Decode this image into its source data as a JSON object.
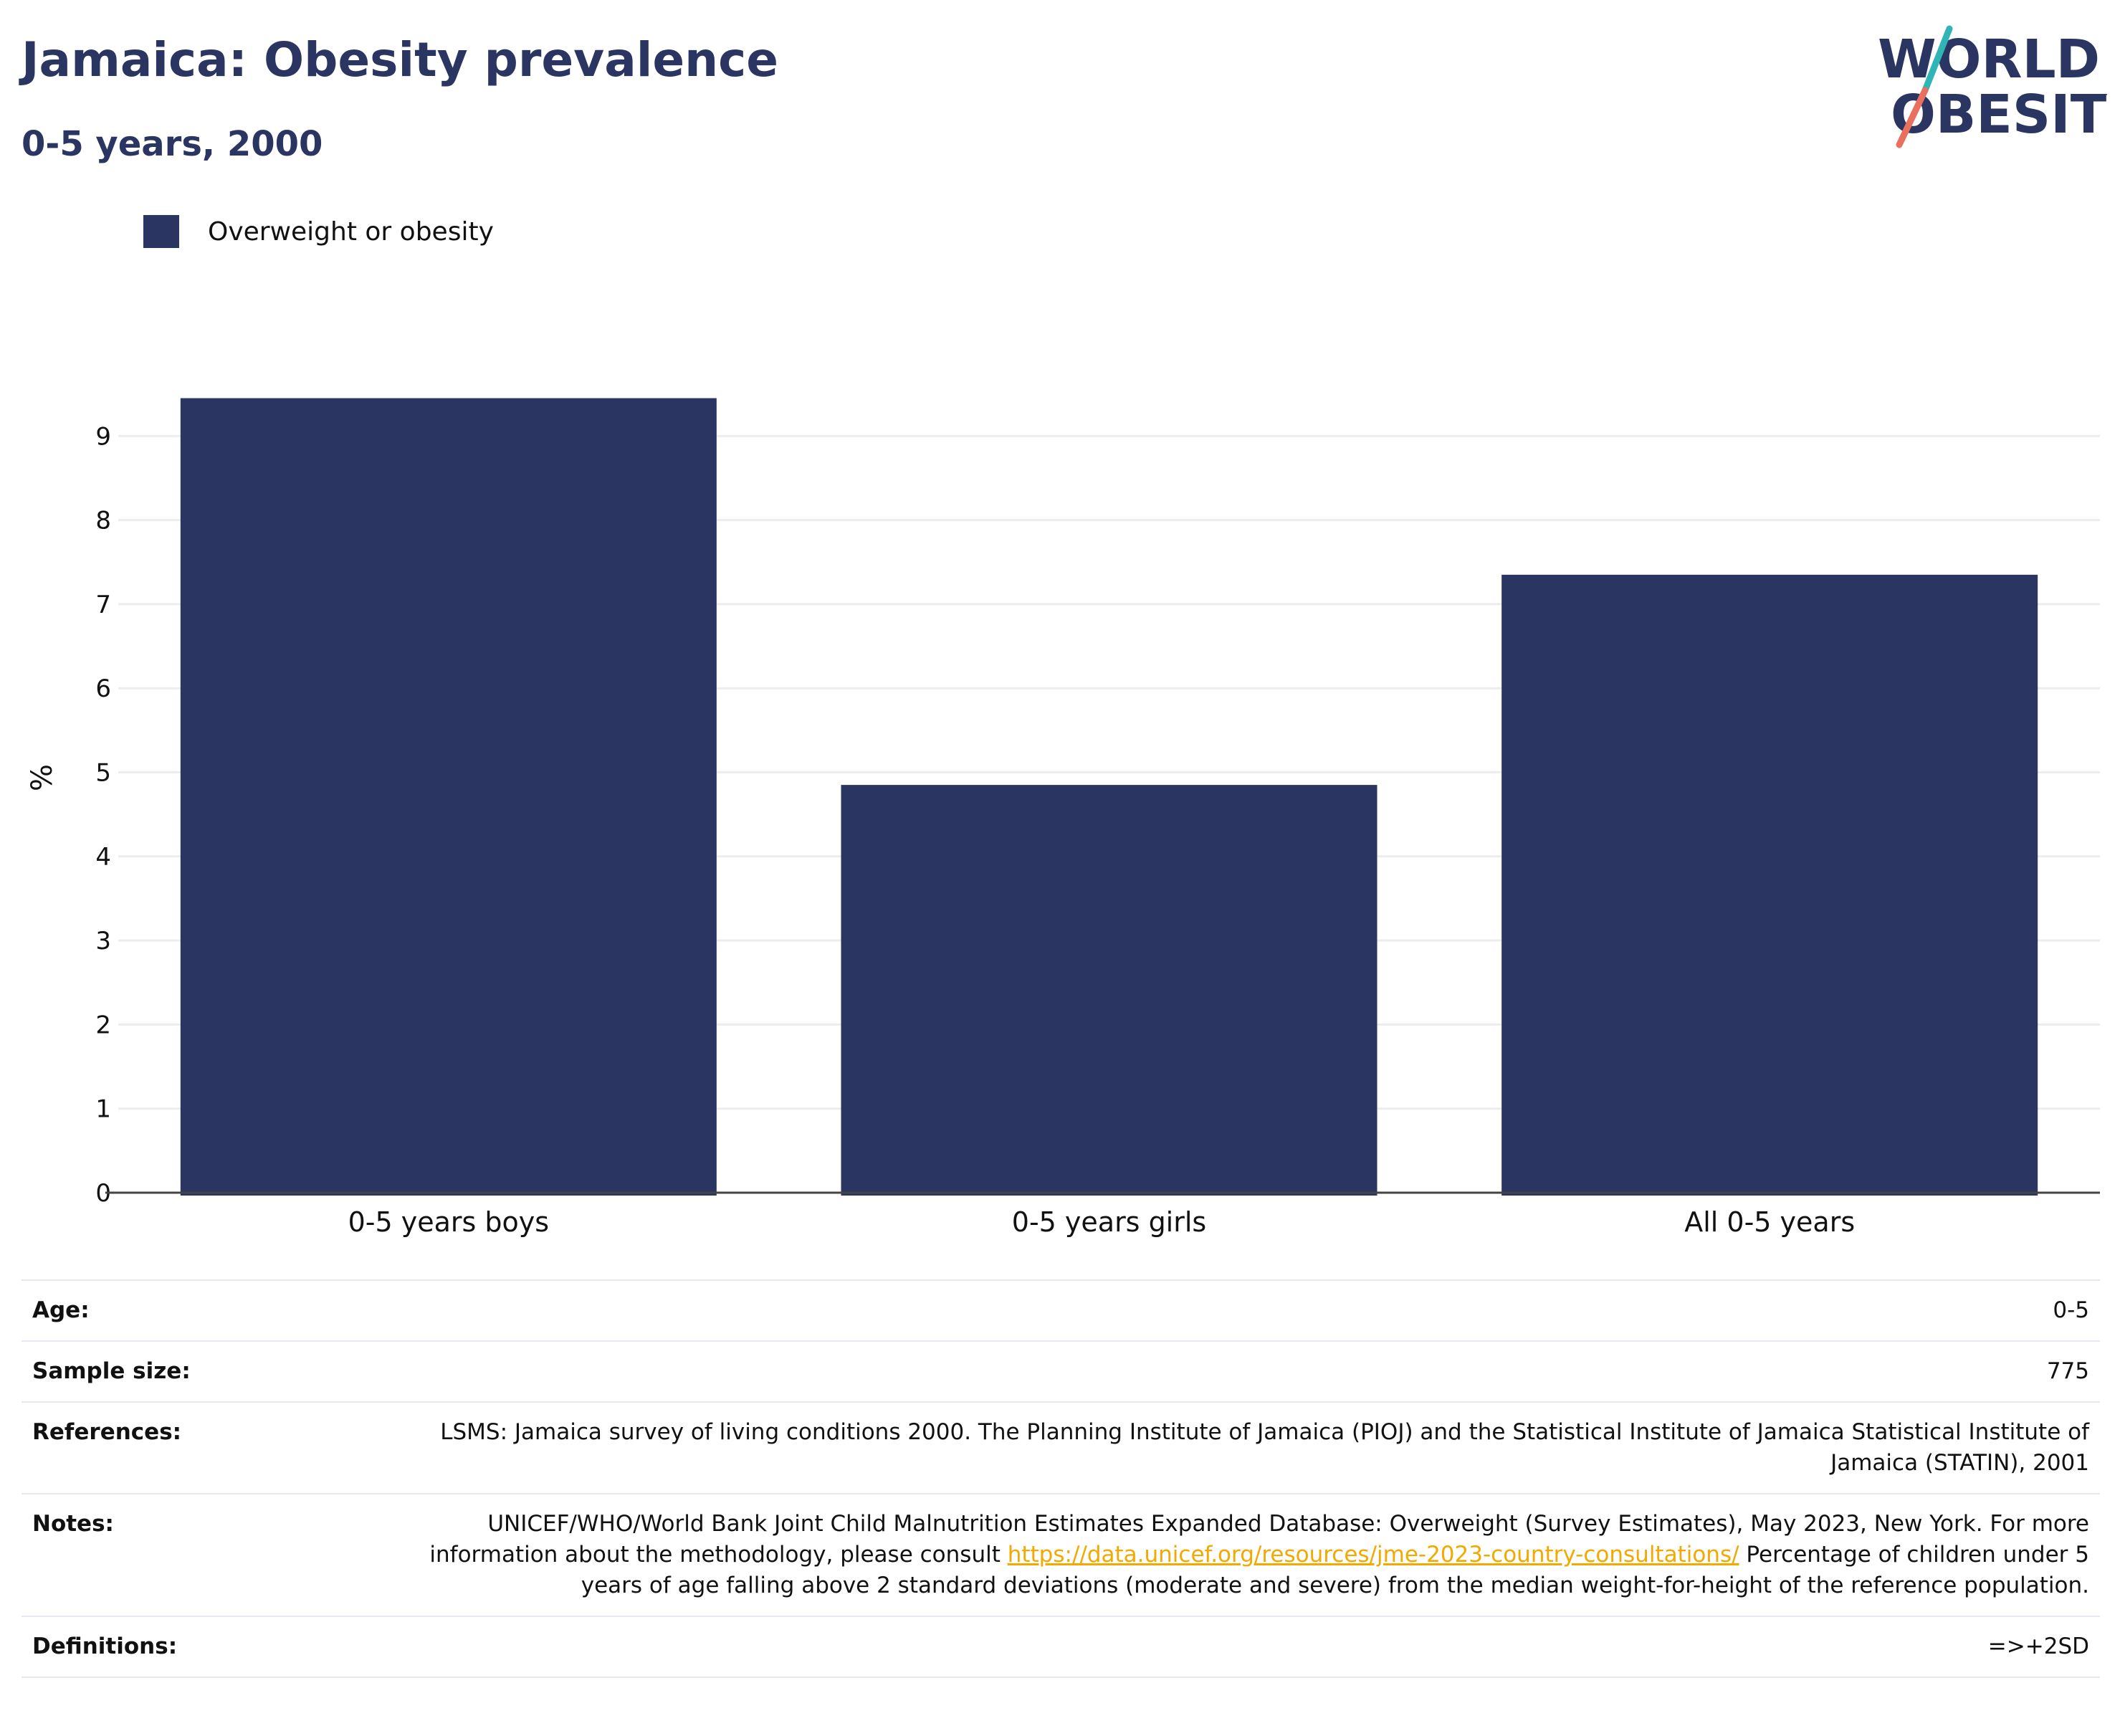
{
  "header": {
    "title": "Jamaica: Obesity prevalence",
    "subtitle": "0-5 years, 2000",
    "logo_line1": "WORLD",
    "logo_line2": "OBESITY"
  },
  "legend": {
    "label": "Overweight or obesity"
  },
  "colors": {
    "bar": "#2b3561",
    "title": "#2b3561",
    "link": "#f2a900",
    "logo_teal": "#2fb5b5",
    "logo_coral": "#e9705e"
  },
  "chart_data": {
    "type": "bar",
    "categories": [
      "0-5 years boys",
      "0-5 years girls",
      "All 0-5 years"
    ],
    "series": [
      {
        "name": "Overweight or obesity",
        "values": [
          9.45,
          4.85,
          7.35
        ]
      }
    ],
    "ylabel": "%",
    "ylim": [
      0,
      9.5
    ],
    "yticks": [
      "0",
      "1",
      "2",
      "3",
      "4",
      "5",
      "6",
      "7",
      "8",
      "9"
    ],
    "grid": true,
    "legend_position": "top-left"
  },
  "info": [
    {
      "key": "Age:",
      "value": "0-5"
    },
    {
      "key": "Sample size:",
      "value": "775"
    },
    {
      "key": "References:",
      "value": "LSMS: Jamaica survey of living conditions 2000. The Planning Institute of Jamaica (PIOJ) and the Statistical Institute of Jamaica Statistical Institute of Jamaica (STATIN), 2001"
    },
    {
      "key": "Notes:",
      "value_pre": "UNICEF/WHO/World Bank Joint Child Malnutrition Estimates Expanded Database: Overweight (Survey Estimates), May 2023, New York. For more information about the methodology, please consult",
      "link": "https://data.unicef.org/resources/jme-2023-country-consultations/",
      "value_post": "Percentage of children under 5 years of age falling above 2 standard deviations (moderate and severe) from the median weight-for-height of the reference population."
    },
    {
      "key": "Definitions:",
      "value": "=>+2SD"
    }
  ]
}
